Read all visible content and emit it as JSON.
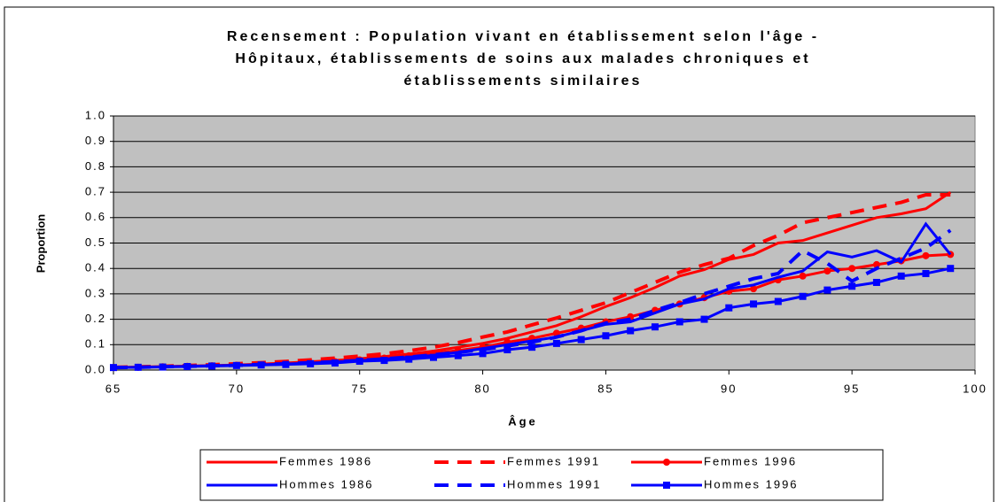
{
  "chart_data": {
    "type": "line",
    "title": [
      "Recensement : Population vivant en établissement selon l'âge -",
      "Hôpitaux, établissements de soins aux malades chroniques et",
      "établissements similaires"
    ],
    "xlabel": "Âge",
    "ylabel": "Proportion",
    "x": [
      65,
      66,
      67,
      68,
      69,
      70,
      71,
      72,
      73,
      74,
      75,
      76,
      77,
      78,
      79,
      80,
      81,
      82,
      83,
      84,
      85,
      86,
      87,
      88,
      89,
      90,
      91,
      92,
      93,
      94,
      95,
      96,
      97,
      98,
      99
    ],
    "xlim": [
      65,
      100
    ],
    "xticks": [
      65,
      70,
      75,
      80,
      85,
      90,
      95,
      100
    ],
    "ylim": [
      0,
      1
    ],
    "yticks": [
      {
        "value": 0,
        "label": "0.0"
      },
      0.1,
      0.2,
      0.3,
      0.4,
      0.5,
      0.6,
      0.7,
      0.8,
      0.9,
      {
        "value": 1,
        "label": "1.0"
      }
    ],
    "grid": true,
    "legend": "bottom",
    "series": [
      {
        "name": "Femmes 1986",
        "color": "#ff0000",
        "dash": false,
        "marker": "none",
        "values": [
          0.01,
          0.012,
          0.014,
          0.016,
          0.018,
          0.02,
          0.024,
          0.028,
          0.033,
          0.038,
          0.045,
          0.053,
          0.063,
          0.075,
          0.09,
          0.105,
          0.125,
          0.15,
          0.175,
          0.21,
          0.25,
          0.285,
          0.325,
          0.37,
          0.395,
          0.435,
          0.455,
          0.5,
          0.51,
          0.54,
          0.57,
          0.6,
          0.615,
          0.635,
          0.7
        ]
      },
      {
        "name": "Femmes 1991",
        "color": "#ff0000",
        "dash": true,
        "marker": "none",
        "values": [
          0.011,
          0.013,
          0.015,
          0.018,
          0.021,
          0.025,
          0.029,
          0.034,
          0.04,
          0.047,
          0.055,
          0.064,
          0.076,
          0.09,
          0.108,
          0.13,
          0.15,
          0.178,
          0.205,
          0.235,
          0.265,
          0.305,
          0.345,
          0.385,
          0.415,
          0.44,
          0.49,
          0.53,
          0.58,
          0.6,
          0.62,
          0.64,
          0.66,
          0.69,
          0.69
        ]
      },
      {
        "name": "Femmes 1996",
        "color": "#ff0000",
        "dash": false,
        "marker": "circle",
        "values": [
          0.01,
          0.011,
          0.013,
          0.015,
          0.017,
          0.019,
          0.021,
          0.024,
          0.028,
          0.033,
          0.04,
          0.047,
          0.056,
          0.066,
          0.077,
          0.09,
          0.11,
          0.125,
          0.145,
          0.165,
          0.19,
          0.21,
          0.235,
          0.26,
          0.285,
          0.31,
          0.32,
          0.355,
          0.37,
          0.39,
          0.4,
          0.415,
          0.43,
          0.45,
          0.455
        ]
      },
      {
        "name": "Hommes 1986",
        "color": "#0000ff",
        "dash": false,
        "marker": "none",
        "values": [
          0.01,
          0.011,
          0.013,
          0.015,
          0.017,
          0.019,
          0.021,
          0.024,
          0.028,
          0.032,
          0.037,
          0.043,
          0.05,
          0.058,
          0.07,
          0.085,
          0.1,
          0.115,
          0.13,
          0.155,
          0.18,
          0.19,
          0.225,
          0.26,
          0.28,
          0.32,
          0.335,
          0.365,
          0.39,
          0.465,
          0.445,
          0.47,
          0.425,
          0.575,
          0.455
        ]
      },
      {
        "name": "Hommes 1991",
        "color": "#0000ff",
        "dash": true,
        "marker": "none",
        "values": [
          0.01,
          0.011,
          0.013,
          0.015,
          0.017,
          0.019,
          0.022,
          0.025,
          0.029,
          0.033,
          0.038,
          0.044,
          0.051,
          0.06,
          0.07,
          0.08,
          0.095,
          0.11,
          0.13,
          0.155,
          0.185,
          0.2,
          0.235,
          0.265,
          0.3,
          0.33,
          0.36,
          0.38,
          0.47,
          0.42,
          0.35,
          0.4,
          0.44,
          0.48,
          0.55
        ]
      },
      {
        "name": "Hommes 1996",
        "color": "#0000ff",
        "dash": false,
        "marker": "square",
        "values": [
          0.01,
          0.011,
          0.012,
          0.014,
          0.016,
          0.018,
          0.02,
          0.022,
          0.025,
          0.028,
          0.035,
          0.038,
          0.043,
          0.05,
          0.057,
          0.065,
          0.08,
          0.09,
          0.105,
          0.12,
          0.135,
          0.155,
          0.17,
          0.19,
          0.2,
          0.245,
          0.26,
          0.27,
          0.29,
          0.315,
          0.33,
          0.345,
          0.37,
          0.38,
          0.4
        ]
      }
    ]
  }
}
